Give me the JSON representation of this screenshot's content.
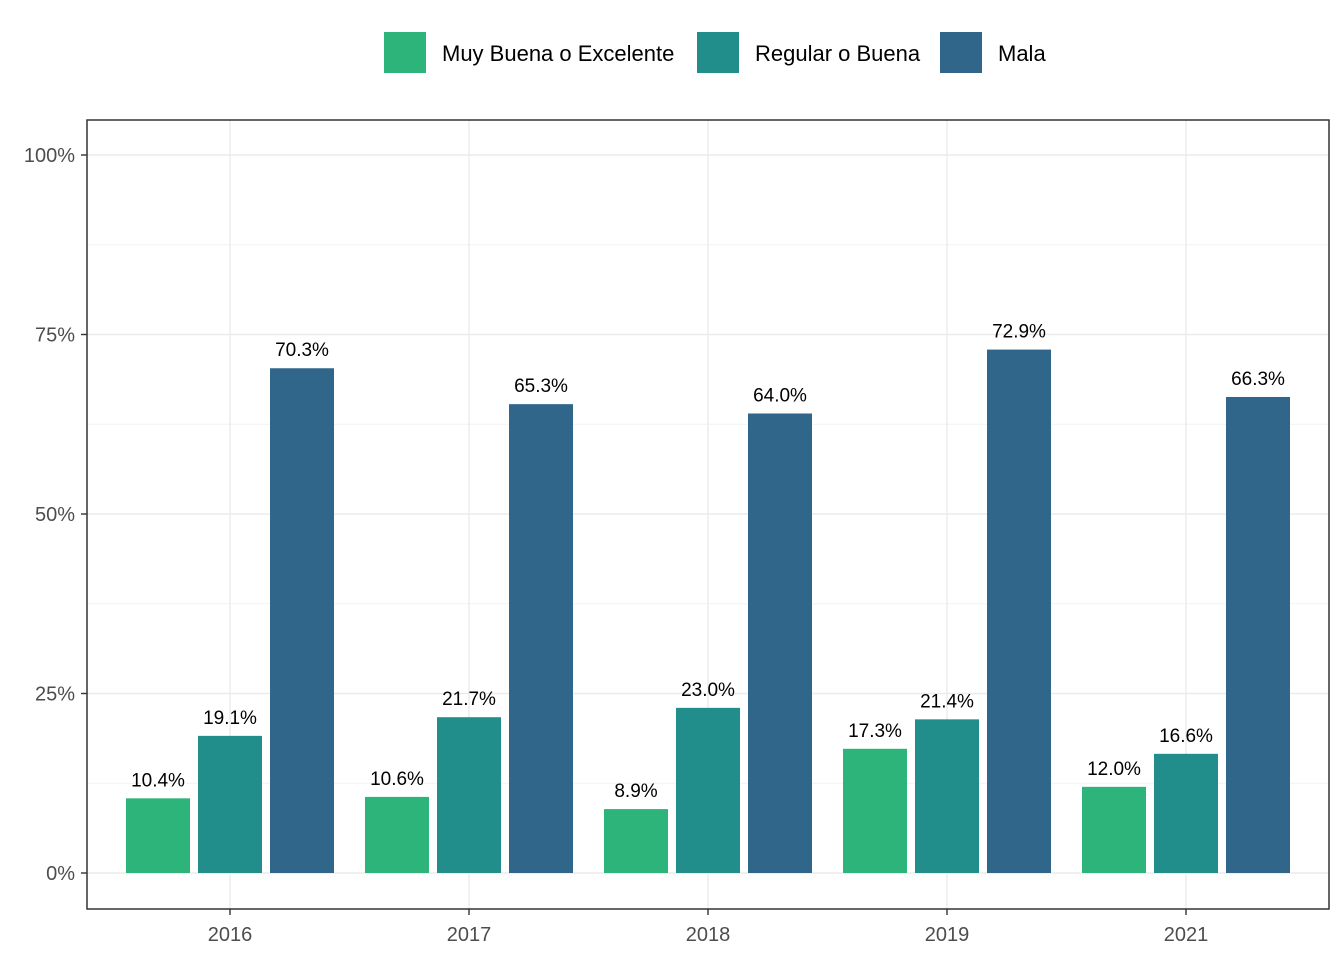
{
  "chart_data": {
    "type": "bar",
    "title": "",
    "xlabel": "",
    "ylabel": "",
    "categories": [
      "2016",
      "2017",
      "2018",
      "2019",
      "2021"
    ],
    "series": [
      {
        "name": "Muy Buena o Excelente",
        "color": "#2db47a",
        "values": [
          10.4,
          10.6,
          8.9,
          17.3,
          12.0
        ],
        "labels": [
          "10.4%",
          "10.6%",
          "8.9%",
          "17.3%",
          "12.0%"
        ]
      },
      {
        "name": "Regular o Buena",
        "color": "#218e8c",
        "values": [
          19.1,
          21.7,
          23.0,
          21.4,
          16.6
        ],
        "labels": [
          "19.1%",
          "21.7%",
          "23.0%",
          "21.4%",
          "16.6%"
        ]
      },
      {
        "name": "Mala",
        "color": "#31668b",
        "values": [
          70.3,
          65.3,
          64.0,
          72.9,
          66.3
        ],
        "labels": [
          "70.3%",
          "65.3%",
          "64.0%",
          "72.9%",
          "66.3%"
        ]
      }
    ],
    "ylim": [
      -10,
      105
    ],
    "yticks": [
      0,
      25,
      50,
      75,
      100
    ],
    "ytick_labels": [
      "0%",
      "25%",
      "50%",
      "75%",
      "100%"
    ],
    "grid": true,
    "legend_position": "top",
    "value_unit": "%"
  }
}
